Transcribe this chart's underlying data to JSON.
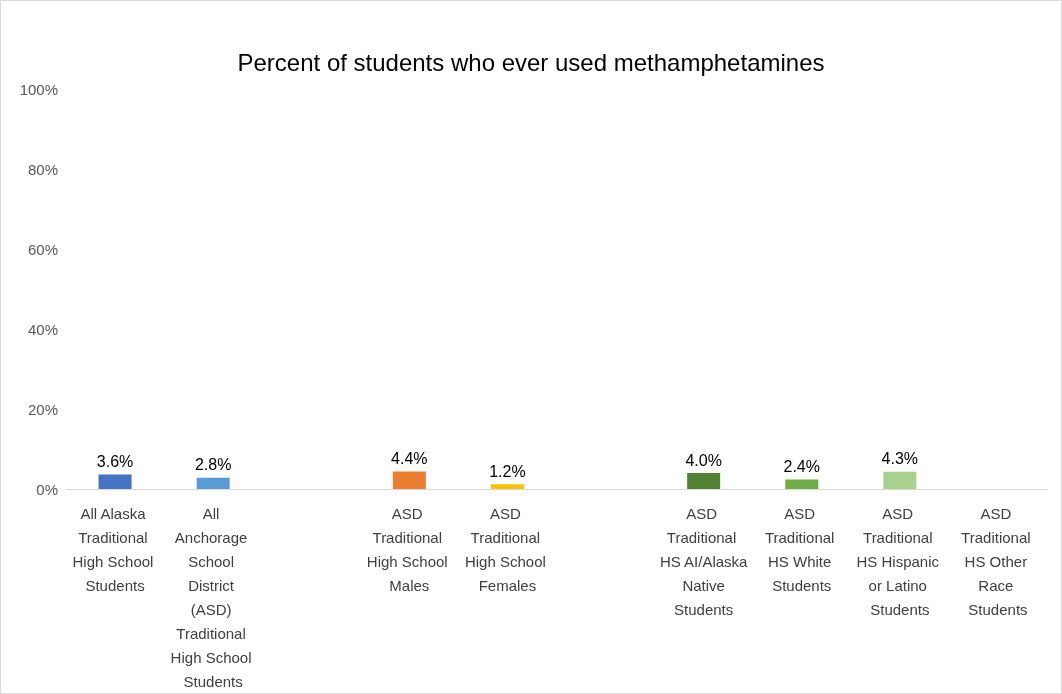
{
  "chart_data": {
    "type": "bar",
    "title": "Percent of students who ever used methamphetamines",
    "categories": [
      "All Alaska Traditional High School Students",
      "All Anchorage School District (ASD) Traditional High School Students",
      null,
      "ASD Traditional High School Males",
      "ASD Traditional High School Females",
      null,
      "ASD Traditional HS AI/Alaska Native Students",
      "ASD Traditional HS White Students",
      "ASD Traditional HS Hispanic or Latino Students",
      "ASD Traditional HS Other Race Students"
    ],
    "values": [
      3.6,
      2.8,
      null,
      4.4,
      1.2,
      null,
      4.0,
      2.4,
      4.3,
      null
    ],
    "colors": [
      "#4472c4",
      "#5b9bd5",
      "#ffffff",
      "#ed7d31",
      "#ffc000",
      "#ffffff",
      "#548235",
      "#70ad47",
      "#a9d18e",
      "#ffffff"
    ],
    "value_labels": [
      "3.6%",
      "2.8%",
      null,
      "4.4%",
      "1.2%",
      null,
      "4.0%",
      "2.4%",
      "4.3%",
      null
    ],
    "ylim": [
      0,
      100
    ],
    "yticks": [
      {
        "value": 0,
        "label": "0%"
      },
      {
        "value": 20,
        "label": "20%"
      },
      {
        "value": 40,
        "label": "40%"
      },
      {
        "value": 60,
        "label": "60%"
      },
      {
        "value": 80,
        "label": "80%"
      },
      {
        "value": 100,
        "label": "100%"
      }
    ],
    "grid": false
  }
}
